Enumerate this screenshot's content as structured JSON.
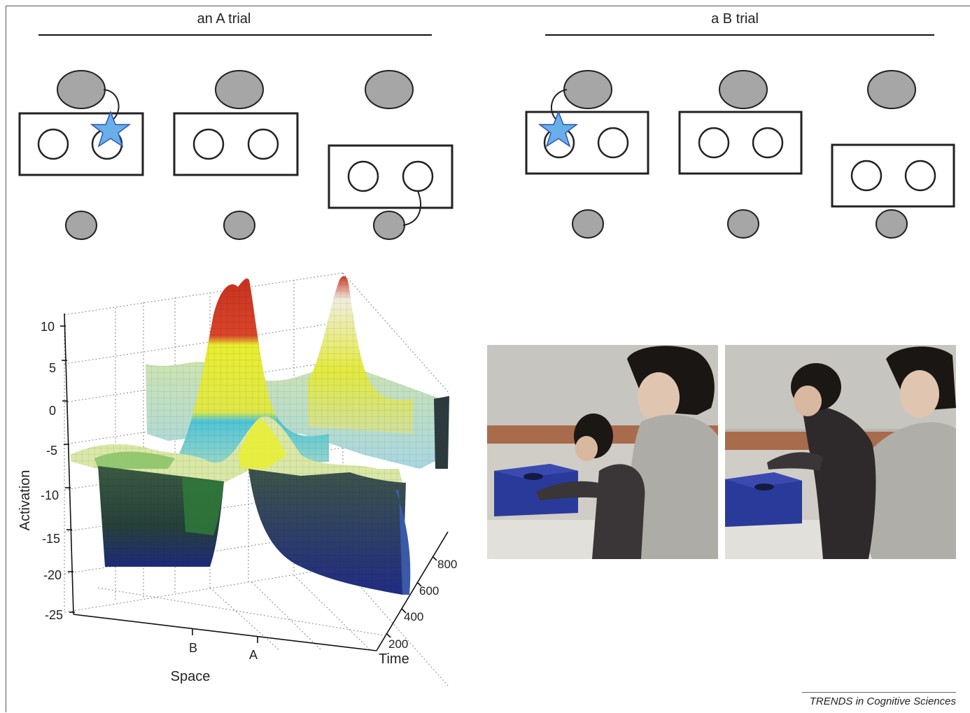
{
  "panels": {
    "a_trial_title": "an A trial",
    "b_trial_title": "a B trial"
  },
  "plot": {
    "zlabel": "Activation",
    "xlabel": "Space",
    "ylabel": "Time",
    "z_ticks": [
      "10",
      "5",
      "0",
      "-5",
      "-10",
      "-15",
      "-20",
      "-25"
    ],
    "x_ticks": [
      "B",
      "A"
    ],
    "y_ticks": [
      "200",
      "400",
      "600",
      "800"
    ]
  },
  "colors": {
    "shape_fill": "#a6a6a6",
    "star_fill": "#6aaee8",
    "star_stroke": "#2b55b8",
    "peak_red": "#c8321e",
    "surface_yellow": "#e8ee30",
    "surface_cyan": "#4fc4d6",
    "surface_green": "#7cc25a",
    "surface_dark": "#1f3b2e",
    "surface_navy": "#1e2a7a"
  },
  "credit": "TRENDS in Cognitive Sciences"
}
